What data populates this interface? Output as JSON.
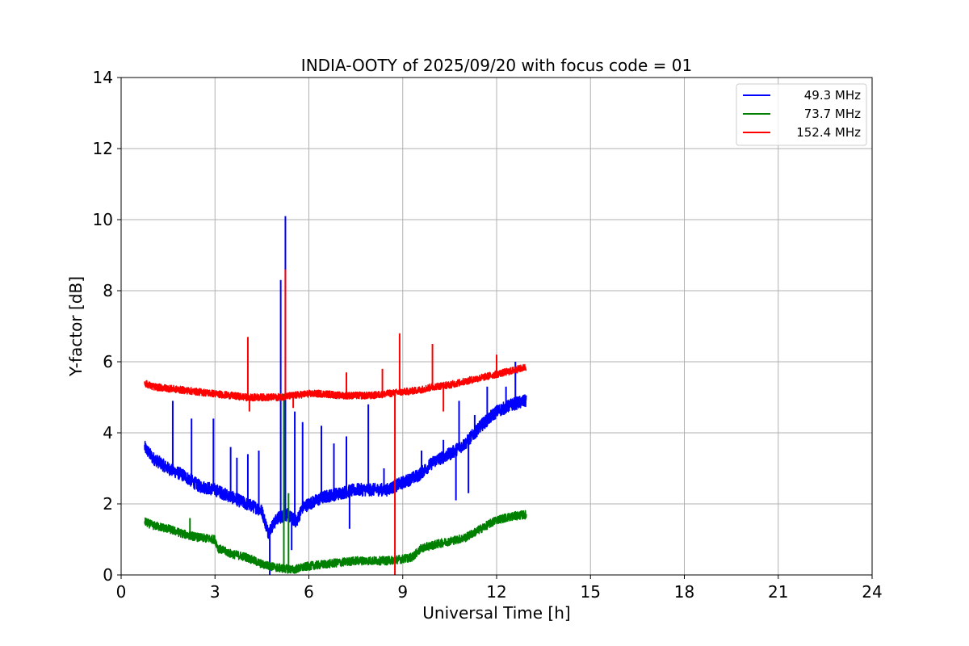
{
  "chart_data": {
    "type": "line",
    "title": "INDIA-OOTY of 2025/09/20 with focus code = 01",
    "xlabel": "Universal Time [h]",
    "ylabel": "Y-factor [dB]",
    "xlim": [
      0,
      24
    ],
    "ylim": [
      0,
      14
    ],
    "xticks": [
      0,
      3,
      6,
      9,
      12,
      15,
      18,
      21,
      24
    ],
    "yticks": [
      0,
      2,
      4,
      6,
      8,
      10,
      12,
      14
    ],
    "grid": true,
    "legend_position": "top-right",
    "series": [
      {
        "name": " 49.3 MHz",
        "color": "#0000ff",
        "x": [
          0.75,
          1.0,
          1.5,
          2.0,
          2.5,
          3.0,
          3.5,
          4.0,
          4.3,
          4.5,
          4.7,
          5.0,
          5.3,
          5.6,
          5.8,
          6.0,
          6.5,
          7.0,
          7.5,
          8.0,
          8.5,
          9.0,
          9.5,
          10.0,
          10.5,
          11.0,
          11.5,
          12.0,
          12.5,
          12.95
        ],
        "values": [
          3.6,
          3.3,
          3.0,
          2.8,
          2.5,
          2.4,
          2.2,
          2.0,
          1.9,
          1.8,
          1.2,
          1.6,
          1.7,
          1.5,
          1.9,
          2.0,
          2.2,
          2.3,
          2.4,
          2.4,
          2.4,
          2.6,
          2.8,
          3.2,
          3.4,
          3.7,
          4.2,
          4.6,
          4.8,
          4.9
        ],
        "spikes": [
          [
            1.65,
            4.9
          ],
          [
            2.25,
            4.4
          ],
          [
            2.95,
            4.4
          ],
          [
            3.5,
            3.6
          ],
          [
            3.7,
            3.3
          ],
          [
            4.05,
            3.4
          ],
          [
            4.4,
            3.5
          ],
          [
            5.1,
            8.3
          ],
          [
            5.25,
            10.1
          ],
          [
            5.55,
            4.6
          ],
          [
            5.8,
            4.3
          ],
          [
            6.4,
            4.2
          ],
          [
            6.8,
            3.7
          ],
          [
            7.2,
            3.9
          ],
          [
            7.9,
            4.8
          ],
          [
            8.4,
            3.0
          ],
          [
            9.6,
            3.5
          ],
          [
            10.3,
            3.8
          ],
          [
            10.8,
            4.9
          ],
          [
            11.3,
            4.5
          ],
          [
            11.7,
            5.3
          ],
          [
            12.3,
            5.3
          ],
          [
            12.6,
            6.0
          ]
        ],
        "dips": [
          [
            4.75,
            0.0
          ],
          [
            5.45,
            0.7
          ],
          [
            7.3,
            1.3
          ],
          [
            10.7,
            2.1
          ],
          [
            11.1,
            2.3
          ]
        ]
      },
      {
        "name": " 73.7 MHz",
        "color": "#008000",
        "x": [
          0.75,
          1.0,
          1.5,
          2.0,
          2.5,
          3.0,
          3.1,
          3.5,
          4.0,
          4.5,
          5.0,
          5.5,
          6.0,
          6.5,
          7.0,
          7.5,
          8.0,
          8.5,
          9.0,
          9.3,
          9.6,
          10.0,
          10.5,
          11.0,
          11.5,
          12.0,
          12.5,
          12.95
        ],
        "values": [
          1.5,
          1.4,
          1.3,
          1.15,
          1.05,
          1.0,
          0.75,
          0.6,
          0.5,
          0.3,
          0.2,
          0.15,
          0.25,
          0.3,
          0.35,
          0.4,
          0.4,
          0.4,
          0.45,
          0.5,
          0.75,
          0.85,
          0.95,
          1.05,
          1.3,
          1.55,
          1.65,
          1.7
        ],
        "spikes": [
          [
            5.2,
            5.1
          ],
          [
            5.35,
            2.3
          ],
          [
            2.2,
            1.6
          ]
        ],
        "dips": []
      },
      {
        "name": "152.4 MHz",
        "color": "#ff0000",
        "x": [
          0.75,
          1.0,
          1.5,
          2.0,
          2.5,
          3.0,
          3.5,
          4.0,
          4.5,
          5.0,
          5.5,
          6.0,
          6.5,
          7.0,
          7.5,
          8.0,
          8.5,
          9.0,
          9.5,
          10.0,
          10.5,
          11.0,
          11.5,
          12.0,
          12.5,
          12.95
        ],
        "values": [
          5.4,
          5.3,
          5.25,
          5.2,
          5.15,
          5.1,
          5.05,
          5.0,
          5.0,
          5.0,
          5.05,
          5.1,
          5.1,
          5.05,
          5.05,
          5.05,
          5.1,
          5.15,
          5.2,
          5.3,
          5.35,
          5.45,
          5.55,
          5.65,
          5.75,
          5.85
        ],
        "spikes": [
          [
            4.05,
            6.7
          ],
          [
            5.25,
            8.6
          ],
          [
            7.2,
            5.7
          ],
          [
            8.35,
            5.8
          ],
          [
            8.9,
            6.8
          ],
          [
            9.95,
            6.5
          ],
          [
            12.0,
            6.2
          ]
        ],
        "dips": [
          [
            8.75,
            0.0
          ],
          [
            10.3,
            4.6
          ],
          [
            4.1,
            4.6
          ],
          [
            5.5,
            4.7
          ]
        ]
      }
    ]
  }
}
